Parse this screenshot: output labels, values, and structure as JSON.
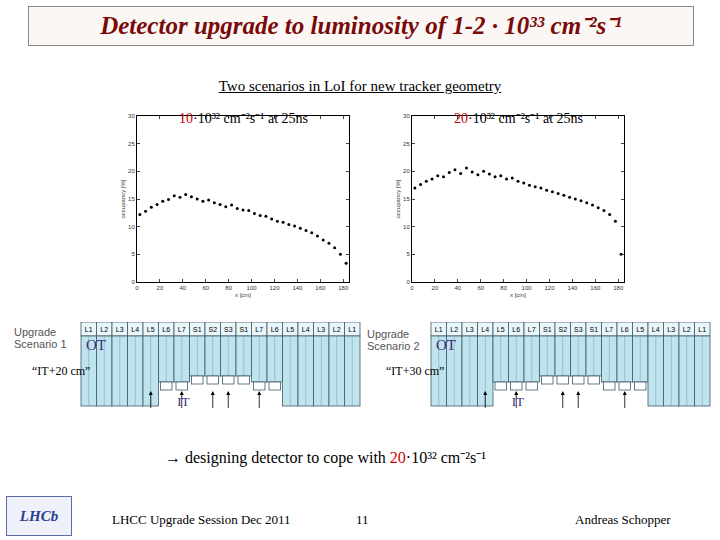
{
  "slide": {
    "title": "Detector upgrade to luminosity of 1-2 · 10³³ cm⁻²s⁻¹",
    "subtitle": "Two scenarios in LoI for new tracker geometry",
    "conclusion": {
      "before": "→ designing detector to cope with ",
      "highlight": "20",
      "after": "·10³² cm⁻²s⁻¹"
    },
    "footer": {
      "left": "LHCC Upgrade Session Dec 2011",
      "page": "11",
      "author": "Andreas Schopper"
    },
    "logo": "LHCb"
  },
  "scenarios": [
    {
      "label": [
        "Upgrade",
        "Scenario 1"
      ],
      "name": "“IT+20 cm”",
      "outer": "OT",
      "inner": "IT",
      "layers": [
        "L1",
        "L2",
        "L3",
        "L4",
        "L5",
        "L6",
        "L7",
        "S1",
        "S2",
        "S3",
        "S1",
        "L7",
        "L6",
        "L5",
        "L4",
        "L3",
        "L2",
        "L1"
      ]
    },
    {
      "label": [
        "Upgrade",
        "Scenario 2"
      ],
      "name": "“IT+30 cm”",
      "outer": "OT",
      "inner": "IT",
      "layers": [
        "L1",
        "L2",
        "L3",
        "L4",
        "L5",
        "L6",
        "L7",
        "S1",
        "S2",
        "S3",
        "S1",
        "L7",
        "L6",
        "L5",
        "L4",
        "L3",
        "L2",
        "L1"
      ]
    }
  ],
  "chart_data": [
    {
      "type": "scatter",
      "title": "10·10³² cm⁻²s⁻¹ at 25ns",
      "x_label": "x [cm]",
      "y_label": "occupancy [%]",
      "x": [
        2.5,
        7.5,
        12.5,
        17.5,
        22.5,
        27.5,
        32.5,
        37.5,
        42.5,
        47.5,
        52.5,
        57.5,
        62.5,
        67.5,
        72.5,
        77.5,
        82.5,
        87.5,
        92.5,
        97.5,
        102.5,
        107.5,
        112.5,
        117.5,
        122.5,
        127.5,
        132.5,
        137.5,
        142.5,
        147.5,
        152.5,
        157.5,
        162.5,
        167.5,
        172.5,
        177.5,
        182.5
      ],
      "values": [
        12.2,
        12.8,
        13.5,
        14.0,
        14.6,
        14.9,
        15.6,
        15.3,
        15.8,
        15.4,
        15.0,
        14.6,
        14.8,
        14.3,
        14.0,
        13.6,
        13.9,
        13.3,
        13.0,
        12.9,
        12.4,
        12.0,
        11.9,
        11.4,
        11.0,
        10.8,
        10.4,
        10.1,
        9.7,
        9.3,
        8.9,
        8.3,
        7.6,
        7.0,
        6.2,
        5.0,
        3.4
      ],
      "color": "#000000",
      "marker": "dot",
      "xlim": [
        0,
        185
      ],
      "xticks": [
        0,
        20,
        40,
        60,
        80,
        100,
        120,
        140,
        160,
        180
      ],
      "ylim": [
        0,
        30
      ],
      "yticks": [
        0,
        5,
        10,
        15,
        20,
        25,
        30
      ]
    },
    {
      "type": "scatter",
      "title": "20·10³² cm⁻²s⁻¹ at 25ns",
      "x_label": "x [cm]",
      "y_label": "occupancy [%]",
      "x": [
        2.5,
        7.5,
        12.5,
        17.5,
        22.5,
        27.5,
        32.5,
        37.5,
        42.5,
        47.5,
        52.5,
        57.5,
        62.5,
        67.5,
        72.5,
        77.5,
        82.5,
        87.5,
        92.5,
        97.5,
        102.5,
        107.5,
        112.5,
        117.5,
        122.5,
        127.5,
        132.5,
        137.5,
        142.5,
        147.5,
        152.5,
        157.5,
        162.5,
        167.5,
        172.5,
        177.5,
        182.5
      ],
      "values": [
        17.0,
        17.6,
        18.2,
        18.6,
        19.2,
        19.0,
        19.8,
        20.3,
        19.6,
        20.6,
        19.9,
        19.4,
        20.0,
        19.5,
        19.0,
        19.2,
        18.6,
        18.8,
        18.2,
        17.9,
        17.5,
        17.2,
        17.0,
        16.6,
        16.3,
        16.0,
        15.7,
        15.3,
        15.0,
        14.7,
        14.3,
        13.9,
        13.4,
        12.9,
        12.2,
        11.0,
        5.0
      ],
      "color": "#000000",
      "marker": "dot",
      "xlim": [
        0,
        185
      ],
      "xticks": [
        0,
        20,
        40,
        60,
        80,
        100,
        120,
        140,
        160,
        180
      ],
      "ylim": [
        0,
        30
      ],
      "yticks": [
        0,
        5,
        10,
        15,
        20,
        25,
        30
      ]
    }
  ]
}
